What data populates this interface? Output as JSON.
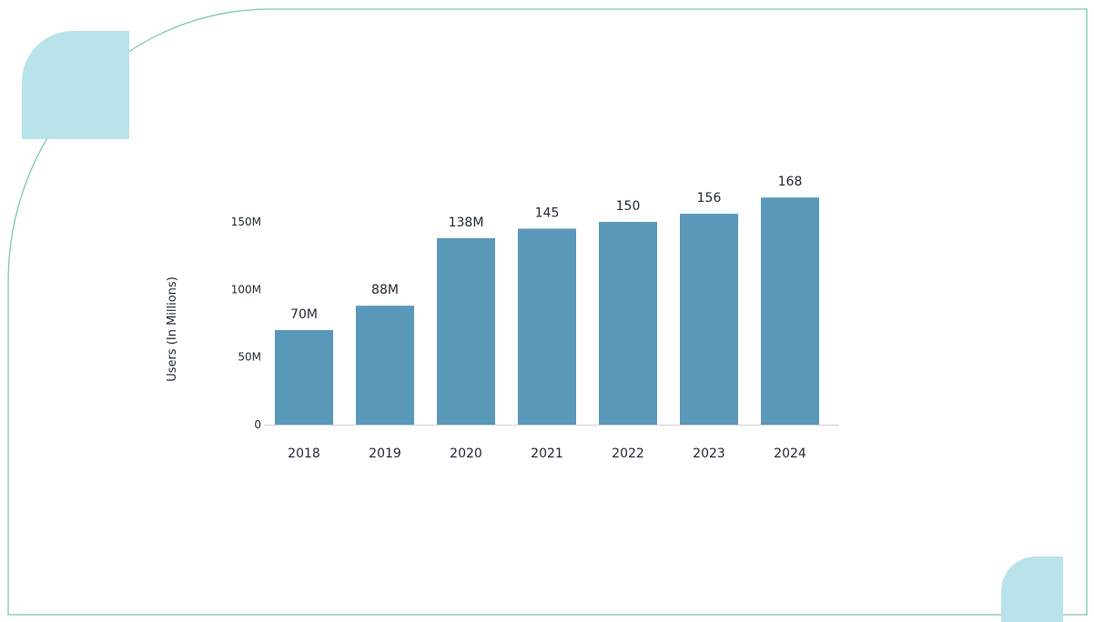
{
  "colors": {
    "bar": "#5a98b9",
    "frame_stroke": "#7cc7b0",
    "accent_shape": "#b9e3ea",
    "baseline": "#d5d5d5",
    "text": "#1f2a30"
  },
  "chart_data": {
    "type": "bar",
    "title": "",
    "xlabel": "",
    "ylabel": "Users  (In Millions)",
    "categories": [
      "2018",
      "2019",
      "2020",
      "2021",
      "2022",
      "2023",
      "2024"
    ],
    "values": [
      70,
      88,
      138,
      145,
      150,
      156,
      168
    ],
    "data_labels": [
      "70M",
      "88M",
      "138M",
      "145",
      "150",
      "156",
      "168"
    ],
    "yticks": [
      0,
      50,
      100,
      150
    ],
    "ytick_labels": [
      "0",
      "50M",
      "100M",
      "150M"
    ],
    "grid": false,
    "legend": "none"
  }
}
